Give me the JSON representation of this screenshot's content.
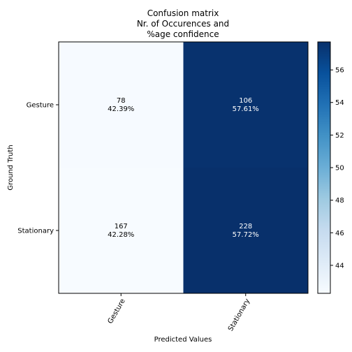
{
  "chart_data": {
    "type": "heatmap",
    "title_lines": [
      "Confusion matrix",
      "Nr. of Occurences and",
      "%age confidence"
    ],
    "xlabel": "Predicted Values",
    "ylabel": "Ground Truth",
    "x_categories": [
      "Gesture",
      "Stationary"
    ],
    "y_categories": [
      "Gesture",
      "Stationary"
    ],
    "cells": [
      [
        {
          "count": "78",
          "pct": "42.39%",
          "value": 42.39
        },
        {
          "count": "106",
          "pct": "57.61%",
          "value": 57.61
        }
      ],
      [
        {
          "count": "167",
          "pct": "42.28%",
          "value": 42.28
        },
        {
          "count": "228",
          "pct": "57.72%",
          "value": 57.72
        }
      ]
    ],
    "colormap": "Blues",
    "color_range": [
      42.28,
      57.72
    ],
    "colorbar_ticks": [
      "44",
      "46",
      "48",
      "50",
      "52",
      "54",
      "56"
    ],
    "colors": {
      "low": "#f7fbff",
      "high": "#08306b",
      "text_light_cell": "#000000",
      "text_dark_cell": "#ffffff"
    }
  }
}
